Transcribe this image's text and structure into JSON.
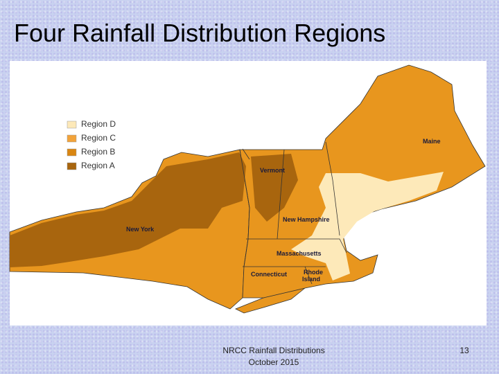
{
  "title": "Four Rainfall Distribution Regions",
  "legend": [
    "Region D",
    "Region C",
    "Region B",
    "Region A"
  ],
  "states": {
    "vermont": "Vermont",
    "maine": "Maine",
    "new_york": "New York",
    "new_hampshire": "New Hampshire",
    "massachusetts": "Massachusetts",
    "connecticut": "Connecticut",
    "rhode_island": [
      "Rhode",
      "Island"
    ]
  },
  "footer": {
    "lines": [
      "NRCC Rainfall Distributions",
      "October 2015"
    ],
    "page": "13"
  }
}
